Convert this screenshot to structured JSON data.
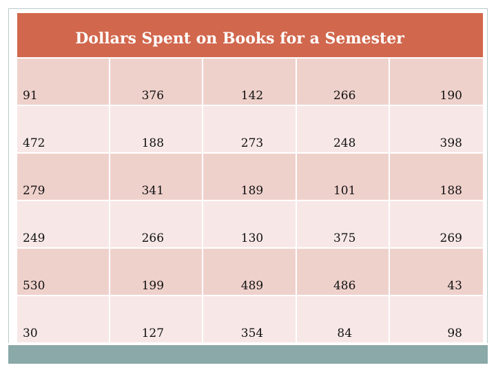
{
  "title": "Dollars Spent on Books for a Semester",
  "colors": {
    "header": "#d1674d",
    "row_dark": "#efd1cc",
    "row_light": "#f7e8e7",
    "footer_bar": "#8aa9a8"
  },
  "table": {
    "rows": [
      [
        "91",
        "376",
        "142",
        "266",
        "190"
      ],
      [
        "472",
        "188",
        "273",
        "248",
        "398"
      ],
      [
        "279",
        "341",
        "189",
        "101",
        "188"
      ],
      [
        "249",
        "266",
        "130",
        "375",
        "269"
      ],
      [
        "530",
        "199",
        "489",
        "486",
        "43"
      ],
      [
        "30",
        "127",
        "354",
        "84",
        "98"
      ]
    ]
  }
}
